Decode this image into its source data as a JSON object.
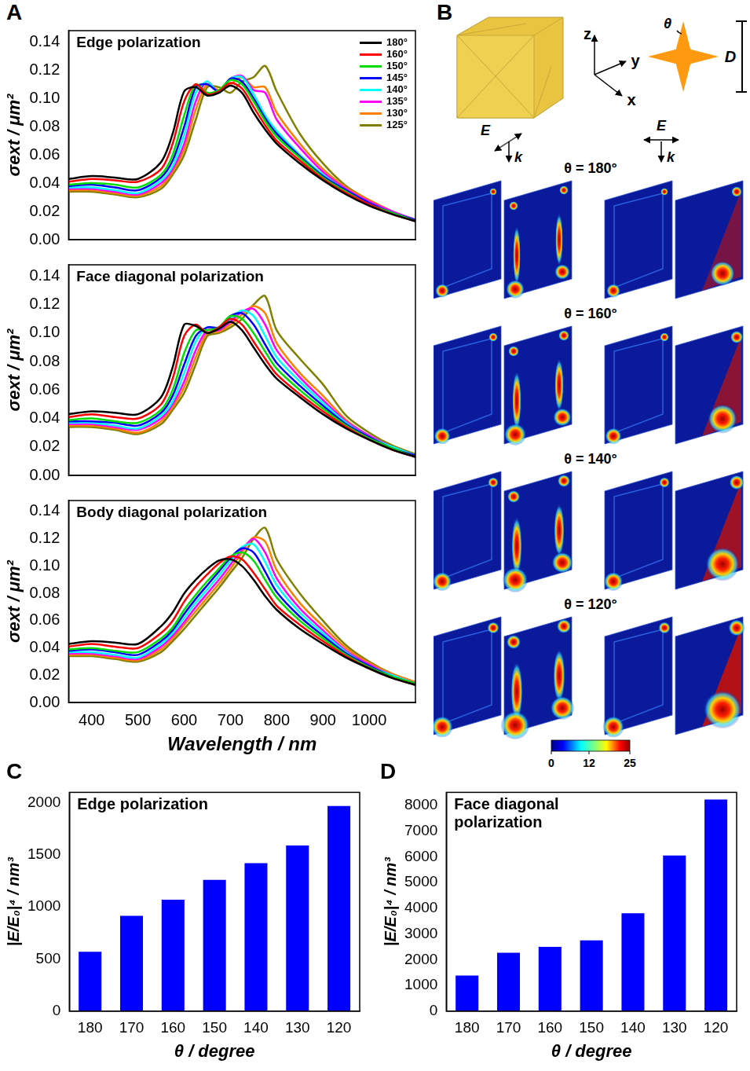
{
  "panel_labels": [
    "A",
    "B",
    "C",
    "D"
  ],
  "chart_data": [
    {
      "type": "line",
      "title": "Edge polarization",
      "y_label": "σext / μm²",
      "x": [
        350,
        400,
        450,
        500,
        550,
        575,
        600,
        625,
        650,
        675,
        700,
        725,
        750,
        775,
        800,
        850,
        900,
        950,
        1000,
        1050,
        1100
      ],
      "xlim": [
        350,
        1100
      ],
      "xticks": [
        400,
        500,
        600,
        700,
        800,
        900,
        1000
      ],
      "ylim": [
        0,
        0.148
      ],
      "yticks": [
        {
          "value": 0,
          "label": "0.00"
        },
        {
          "value": 0.02,
          "label": "0.02"
        },
        {
          "value": 0.04,
          "label": "0.04"
        },
        {
          "value": 0.06,
          "label": "0.06"
        },
        {
          "value": 0.08,
          "label": "0.08"
        },
        {
          "value": 0.1,
          "label": "0.10"
        },
        {
          "value": 0.12,
          "label": "0.12"
        },
        {
          "value": 0.14,
          "label": "0.14"
        }
      ],
      "grid": false,
      "legend": "upper right",
      "tick_labels": "y",
      "series": [
        {
          "name": "180°",
          "color": "#000000",
          "values": [
            0.043,
            0.045,
            0.044,
            0.043,
            0.055,
            0.075,
            0.105,
            0.108,
            0.102,
            0.104,
            0.109,
            0.104,
            0.09,
            0.078,
            0.068,
            0.054,
            0.042,
            0.032,
            0.024,
            0.018,
            0.013
          ]
        },
        {
          "name": "160°",
          "color": "#ff0000",
          "values": [
            0.041,
            0.043,
            0.042,
            0.041,
            0.05,
            0.068,
            0.098,
            0.11,
            0.103,
            0.105,
            0.111,
            0.107,
            0.094,
            0.081,
            0.07,
            0.056,
            0.043,
            0.033,
            0.025,
            0.018,
            0.013
          ]
        },
        {
          "name": "150°",
          "color": "#00dd00",
          "values": [
            0.039,
            0.04,
            0.039,
            0.037,
            0.046,
            0.06,
            0.088,
            0.11,
            0.104,
            0.106,
            0.113,
            0.11,
            0.098,
            0.084,
            0.073,
            0.058,
            0.044,
            0.034,
            0.025,
            0.019,
            0.013
          ]
        },
        {
          "name": "145°",
          "color": "#0000ff",
          "values": [
            0.038,
            0.039,
            0.037,
            0.035,
            0.044,
            0.056,
            0.08,
            0.108,
            0.11,
            0.105,
            0.114,
            0.112,
            0.1,
            0.086,
            0.075,
            0.059,
            0.045,
            0.035,
            0.026,
            0.019,
            0.014
          ]
        },
        {
          "name": "140°",
          "color": "#00ffff",
          "values": [
            0.037,
            0.037,
            0.035,
            0.033,
            0.042,
            0.052,
            0.074,
            0.104,
            0.112,
            0.104,
            0.114,
            0.115,
            0.103,
            0.088,
            0.077,
            0.06,
            0.046,
            0.035,
            0.026,
            0.019,
            0.014
          ]
        },
        {
          "name": "135°",
          "color": "#ff00ff",
          "values": [
            0.036,
            0.036,
            0.034,
            0.032,
            0.04,
            0.05,
            0.068,
            0.098,
            0.112,
            0.104,
            0.114,
            0.116,
            0.106,
            0.104,
            0.085,
            0.065,
            0.048,
            0.036,
            0.027,
            0.02,
            0.014
          ]
        },
        {
          "name": "130°",
          "color": "#ff8000",
          "values": [
            0.035,
            0.035,
            0.033,
            0.031,
            0.038,
            0.048,
            0.064,
            0.092,
            0.11,
            0.106,
            0.11,
            0.115,
            0.108,
            0.108,
            0.09,
            0.068,
            0.05,
            0.037,
            0.028,
            0.02,
            0.014
          ]
        },
        {
          "name": "125°",
          "color": "#808000",
          "values": [
            0.034,
            0.034,
            0.032,
            0.03,
            0.036,
            0.046,
            0.06,
            0.085,
            0.108,
            0.108,
            0.104,
            0.112,
            0.115,
            0.123,
            0.105,
            0.075,
            0.054,
            0.038,
            0.028,
            0.02,
            0.014
          ]
        }
      ]
    },
    {
      "type": "line",
      "title": "Face diagonal polarization",
      "y_label": "σext / μm²",
      "x": [
        350,
        400,
        450,
        500,
        550,
        575,
        600,
        625,
        650,
        675,
        700,
        725,
        750,
        775,
        800,
        850,
        900,
        950,
        1000,
        1050,
        1100
      ],
      "xlim": [
        350,
        1100
      ],
      "xticks": [
        400,
        500,
        600,
        700,
        800,
        900,
        1000
      ],
      "ylim": [
        0,
        0.148
      ],
      "yticks": [
        {
          "value": 0,
          "label": "0.00"
        },
        {
          "value": 0.02,
          "label": "0.02"
        },
        {
          "value": 0.04,
          "label": "0.04"
        },
        {
          "value": 0.06,
          "label": "0.06"
        },
        {
          "value": 0.08,
          "label": "0.08"
        },
        {
          "value": 0.1,
          "label": "0.10"
        },
        {
          "value": 0.12,
          "label": "0.12"
        },
        {
          "value": 0.14,
          "label": "0.14"
        }
      ],
      "grid": false,
      "tick_labels": "y",
      "series": [
        {
          "name": "180°",
          "color": "#000000",
          "values": [
            0.043,
            0.045,
            0.044,
            0.043,
            0.055,
            0.076,
            0.106,
            0.105,
            0.1,
            0.103,
            0.108,
            0.102,
            0.09,
            0.078,
            0.068,
            0.055,
            0.043,
            0.033,
            0.025,
            0.018,
            0.013
          ]
        },
        {
          "name": "160°",
          "color": "#ff0000",
          "values": [
            0.041,
            0.043,
            0.041,
            0.04,
            0.05,
            0.068,
            0.098,
            0.106,
            0.1,
            0.104,
            0.11,
            0.106,
            0.094,
            0.082,
            0.071,
            0.057,
            0.045,
            0.034,
            0.025,
            0.018,
            0.013
          ]
        },
        {
          "name": "150°",
          "color": "#00dd00",
          "values": [
            0.039,
            0.04,
            0.038,
            0.037,
            0.046,
            0.06,
            0.086,
            0.102,
            0.102,
            0.104,
            0.112,
            0.11,
            0.1,
            0.087,
            0.075,
            0.06,
            0.047,
            0.035,
            0.026,
            0.019,
            0.013
          ]
        },
        {
          "name": "145°",
          "color": "#0000ff",
          "values": [
            0.038,
            0.038,
            0.037,
            0.035,
            0.044,
            0.056,
            0.078,
            0.098,
            0.104,
            0.104,
            0.112,
            0.114,
            0.106,
            0.092,
            0.079,
            0.063,
            0.049,
            0.036,
            0.027,
            0.019,
            0.014
          ]
        },
        {
          "name": "140°",
          "color": "#00ffff",
          "values": [
            0.037,
            0.037,
            0.035,
            0.033,
            0.042,
            0.052,
            0.072,
            0.094,
            0.104,
            0.103,
            0.11,
            0.116,
            0.112,
            0.098,
            0.083,
            0.066,
            0.051,
            0.037,
            0.027,
            0.02,
            0.014
          ]
        },
        {
          "name": "135°",
          "color": "#ff00ff",
          "values": [
            0.036,
            0.036,
            0.034,
            0.032,
            0.04,
            0.05,
            0.066,
            0.088,
            0.102,
            0.102,
            0.108,
            0.115,
            0.117,
            0.106,
            0.088,
            0.069,
            0.053,
            0.038,
            0.028,
            0.02,
            0.014
          ]
        },
        {
          "name": "130°",
          "color": "#ff8000",
          "values": [
            0.035,
            0.035,
            0.033,
            0.03,
            0.038,
            0.048,
            0.062,
            0.083,
            0.1,
            0.101,
            0.106,
            0.113,
            0.119,
            0.114,
            0.093,
            0.072,
            0.056,
            0.039,
            0.028,
            0.02,
            0.014
          ]
        },
        {
          "name": "125°",
          "color": "#808000",
          "values": [
            0.034,
            0.034,
            0.032,
            0.029,
            0.036,
            0.046,
            0.058,
            0.078,
            0.098,
            0.1,
            0.104,
            0.11,
            0.12,
            0.126,
            0.102,
            0.082,
            0.064,
            0.042,
            0.03,
            0.021,
            0.015
          ]
        }
      ]
    },
    {
      "type": "line",
      "title": "Body diagonal polarization",
      "x_label": "Wavelength / nm",
      "y_label": "σext / μm²",
      "x": [
        350,
        400,
        450,
        500,
        550,
        575,
        600,
        625,
        650,
        675,
        700,
        725,
        750,
        775,
        800,
        850,
        900,
        950,
        1000,
        1050,
        1100
      ],
      "xlim": [
        350,
        1100
      ],
      "xticks": [
        400,
        500,
        600,
        700,
        800,
        900,
        1000
      ],
      "ylim": [
        0,
        0.148
      ],
      "yticks": [
        {
          "value": 0,
          "label": "0.00"
        },
        {
          "value": 0.02,
          "label": "0.02"
        },
        {
          "value": 0.04,
          "label": "0.04"
        },
        {
          "value": 0.06,
          "label": "0.06"
        },
        {
          "value": 0.08,
          "label": "0.08"
        },
        {
          "value": 0.1,
          "label": "0.10"
        },
        {
          "value": 0.12,
          "label": "0.12"
        },
        {
          "value": 0.14,
          "label": "0.14"
        }
      ],
      "grid": false,
      "series": [
        {
          "name": "180°",
          "color": "#000000",
          "values": [
            0.043,
            0.045,
            0.044,
            0.043,
            0.056,
            0.066,
            0.08,
            0.09,
            0.098,
            0.104,
            0.105,
            0.1,
            0.09,
            0.078,
            0.068,
            0.054,
            0.043,
            0.033,
            0.025,
            0.018,
            0.013
          ]
        },
        {
          "name": "160°",
          "color": "#ff0000",
          "values": [
            0.041,
            0.043,
            0.041,
            0.04,
            0.051,
            0.06,
            0.074,
            0.085,
            0.094,
            0.102,
            0.107,
            0.105,
            0.095,
            0.083,
            0.071,
            0.057,
            0.045,
            0.034,
            0.025,
            0.018,
            0.013
          ]
        },
        {
          "name": "150°",
          "color": "#00dd00",
          "values": [
            0.039,
            0.04,
            0.038,
            0.037,
            0.047,
            0.055,
            0.068,
            0.079,
            0.089,
            0.098,
            0.107,
            0.11,
            0.104,
            0.09,
            0.077,
            0.06,
            0.047,
            0.035,
            0.026,
            0.019,
            0.014
          ]
        },
        {
          "name": "145°",
          "color": "#0000ff",
          "values": [
            0.038,
            0.039,
            0.037,
            0.035,
            0.045,
            0.053,
            0.065,
            0.076,
            0.086,
            0.096,
            0.106,
            0.113,
            0.11,
            0.096,
            0.081,
            0.063,
            0.049,
            0.036,
            0.027,
            0.019,
            0.014
          ]
        },
        {
          "name": "140°",
          "color": "#00ffff",
          "values": [
            0.037,
            0.037,
            0.035,
            0.033,
            0.043,
            0.051,
            0.062,
            0.073,
            0.083,
            0.093,
            0.104,
            0.114,
            0.116,
            0.103,
            0.086,
            0.066,
            0.051,
            0.037,
            0.027,
            0.02,
            0.014
          ]
        },
        {
          "name": "135°",
          "color": "#ff00ff",
          "values": [
            0.036,
            0.036,
            0.034,
            0.032,
            0.041,
            0.049,
            0.059,
            0.07,
            0.08,
            0.09,
            0.101,
            0.112,
            0.12,
            0.11,
            0.091,
            0.069,
            0.053,
            0.038,
            0.028,
            0.02,
            0.014
          ]
        },
        {
          "name": "130°",
          "color": "#ff8000",
          "values": [
            0.035,
            0.035,
            0.033,
            0.031,
            0.039,
            0.047,
            0.057,
            0.067,
            0.077,
            0.087,
            0.098,
            0.11,
            0.121,
            0.118,
            0.097,
            0.073,
            0.056,
            0.04,
            0.029,
            0.021,
            0.015
          ]
        },
        {
          "name": "125°",
          "color": "#808000",
          "values": [
            0.034,
            0.034,
            0.032,
            0.03,
            0.037,
            0.045,
            0.054,
            0.064,
            0.074,
            0.084,
            0.095,
            0.106,
            0.12,
            0.128,
            0.105,
            0.08,
            0.06,
            0.042,
            0.03,
            0.021,
            0.015
          ]
        }
      ]
    },
    {
      "type": "bar",
      "title": "Edge polarization",
      "x_label": "θ / degree",
      "y_label": "|E/E₀|⁴ / nm³",
      "categories": [
        "180",
        "170",
        "160",
        "150",
        "140",
        "130",
        "120"
      ],
      "values": [
        570,
        915,
        1070,
        1260,
        1420,
        1590,
        1970
      ],
      "color": "#0000ff",
      "ylim": [
        0,
        2100
      ],
      "yticks": [
        0,
        500,
        1000,
        1500,
        2000
      ],
      "grid": false
    },
    {
      "type": "bar",
      "title": "Face diagonal polarization",
      "x_label": "θ / degree",
      "y_label": "|E/E₀|⁴ / nm³",
      "categories": [
        "180",
        "170",
        "160",
        "150",
        "140",
        "130",
        "120"
      ],
      "values": [
        1380,
        2270,
        2500,
        2750,
        3800,
        6050,
        8220
      ],
      "color": "#0000ff",
      "ylim": [
        0,
        8500
      ],
      "yticks": [
        0,
        1000,
        2000,
        3000,
        4000,
        5000,
        6000,
        7000,
        8000
      ],
      "grid": false
    }
  ],
  "diagram": {
    "axes": [
      "z",
      "y",
      "x"
    ],
    "star": {
      "angle_label": "θ",
      "size_label": "D"
    },
    "polarizations": [
      {
        "field": "E",
        "wave": "k"
      },
      {
        "field": "E",
        "wave": "k"
      }
    ],
    "rows": [
      "θ = 180°",
      "θ = 160°",
      "θ = 140°",
      "θ = 120°"
    ],
    "colorbar": {
      "range": [
        0,
        25
      ],
      "ticks": [
        0,
        12,
        25
      ]
    }
  }
}
